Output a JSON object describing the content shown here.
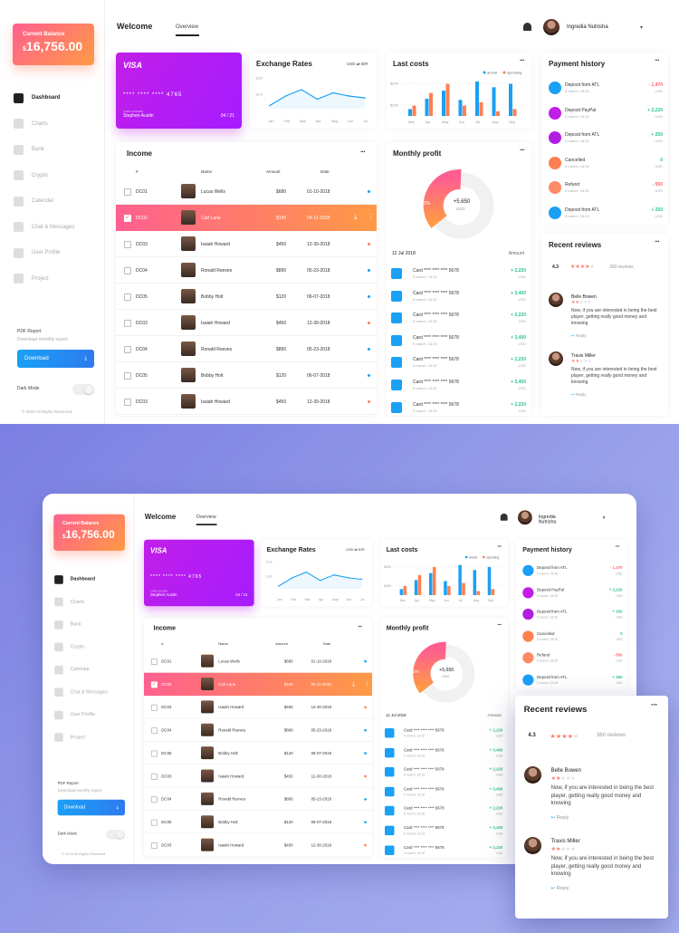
{
  "balance": {
    "label": "Current Balance",
    "currency": "$",
    "amount": "16,756.00"
  },
  "nav": [
    {
      "label": "Dashboard",
      "active": true,
      "icon": "dashboard-icon"
    },
    {
      "label": "Charts",
      "icon": "chart-icon"
    },
    {
      "label": "Bank",
      "icon": "bank-icon"
    },
    {
      "label": "Crypto",
      "icon": "crypto-icon"
    },
    {
      "label": "Calendar",
      "icon": "calendar-icon"
    },
    {
      "label": "Chat & Messages",
      "icon": "chat-icon"
    },
    {
      "label": "User Profile",
      "icon": "user-icon"
    },
    {
      "label": "Project",
      "icon": "project-icon"
    }
  ],
  "pdf": {
    "title": "PDF Report",
    "subtitle": "Download monthly report",
    "button": "Download"
  },
  "dark_mode": "Dark Mode",
  "copyright": "© 2018 All Rights Reserved",
  "header": {
    "title": "Welcome",
    "tab": "Overview",
    "user": "Ingredia Nutrisha"
  },
  "visa": {
    "brand": "VISA",
    "number": "**** **** **** 4765",
    "holder_label": "CARD HOLDER",
    "holder": "Stephen Austin",
    "expiry": "04 / 21"
  },
  "exchange": {
    "title": "Exchange Rates",
    "pair_from": "USD",
    "pair_to": "IDR",
    "y_ticks": [
      "13.6",
      "13.4"
    ],
    "months": [
      "Jan",
      "Feb",
      "Mar",
      "Apr",
      "May",
      "Jun",
      "Jul"
    ]
  },
  "last_costs": {
    "title": "Last costs",
    "legend": [
      "arrival",
      "spending"
    ],
    "y_ticks": [
      "$200",
      "$100"
    ],
    "months": [
      "Mar",
      "Apr",
      "May",
      "Jun",
      "Jul",
      "Aug",
      "Sep"
    ]
  },
  "income": {
    "title": "Income",
    "headers": [
      "#",
      "Name",
      "Amount",
      "Date"
    ],
    "rows": [
      {
        "id": "DC01",
        "name": "Lucas Wells",
        "amount": "$680",
        "date": "01-10-2018",
        "dot": "#1aa0f5"
      },
      {
        "id": "DC02",
        "name": "Carl Lane",
        "amount": "$190",
        "date": "04-11-2018",
        "selected": true
      },
      {
        "id": "DC03",
        "name": "Isaiah Howard",
        "amount": "$450",
        "date": "12-30-2018",
        "dot": "#ff7f50"
      },
      {
        "id": "DC04",
        "name": "Ronald Reeves",
        "amount": "$890",
        "date": "05-23-2018",
        "dot": "#1aa0f5"
      },
      {
        "id": "DC05",
        "name": "Bobby Holt",
        "amount": "$120",
        "date": "06-07-2018",
        "dot": "#1aa0f5"
      },
      {
        "id": "DC03",
        "name": "Isaiah Howard",
        "amount": "$450",
        "date": "12-30-2018",
        "dot": "#ff7f50"
      },
      {
        "id": "DC04",
        "name": "Ronald Reeves",
        "amount": "$890",
        "date": "05-23-2018",
        "dot": "#1aa0f5"
      },
      {
        "id": "DC05",
        "name": "Bobby Holt",
        "amount": "$120",
        "date": "06-07-2018",
        "dot": "#1aa0f5"
      },
      {
        "id": "DC03",
        "name": "Isaiah Howard",
        "amount": "$450",
        "date": "12-30-2018",
        "dot": "#ff7f50"
      }
    ]
  },
  "monthly": {
    "title": "Monthly profit",
    "value": "+5,650",
    "unit": "USD",
    "pct": "12%",
    "date": "12 Jul 2018",
    "amount_label": "Amount",
    "rows": [
      {
        "title": "Card **** **** **** 5678",
        "sub": "5 march, 18:32",
        "value": "+ 2,220"
      },
      {
        "title": "Card **** **** **** 5678",
        "sub": "5 march, 18:32",
        "value": "+ 3,400"
      },
      {
        "title": "Card **** **** **** 5678",
        "sub": "5 march, 18:32",
        "value": "+ 2,220"
      },
      {
        "title": "Card **** **** **** 5678",
        "sub": "5 march, 18:32",
        "value": "+ 3,400"
      },
      {
        "title": "Card **** **** **** 5678",
        "sub": "5 march, 18:32",
        "value": "+ 2,220"
      },
      {
        "title": "Card **** **** **** 5678",
        "sub": "5 march, 18:32",
        "value": "+ 3,400"
      },
      {
        "title": "Card **** **** **** 5678",
        "sub": "5 march, 18:32",
        "value": "+ 2,220"
      }
    ]
  },
  "payment": {
    "title": "Payment history",
    "rows": [
      {
        "title": "Deposit from ATL",
        "sub": "5 march, 18:32",
        "value": "- 1,470",
        "color": "#1aa0f5",
        "neg": true
      },
      {
        "title": "Deposit PayPal",
        "sub": "5 march, 18:32",
        "value": "+ 2,220",
        "color": "#c11ee8"
      },
      {
        "title": "Deposit from ATL",
        "sub": "5 march, 18:32",
        "value": "+ 250",
        "color": "#b21ee0"
      },
      {
        "title": "Cancelled",
        "sub": "5 march, 18:32",
        "value": "0",
        "color": "#ff7f50"
      },
      {
        "title": "Refund",
        "sub": "5 march, 18:32",
        "value": "- 550",
        "color": "#ff8a65",
        "neg": true
      },
      {
        "title": "Deposit from ATL",
        "sub": "5 march, 18:32",
        "value": "+ 250",
        "color": "#1aa0f5"
      }
    ]
  },
  "reviews": {
    "title": "Recent reviews",
    "rating": "4.3",
    "count": "360 reviews",
    "items": [
      {
        "name": "Belle Bowen",
        "text": "Now, if you are interested in being the best player, getting really good money and knowing",
        "reply": "Reply"
      },
      {
        "name": "Travis Miller",
        "text": "Now, if you are interested in being the best player, getting really good money and knowing",
        "reply": "Reply"
      }
    ]
  },
  "chart_data": [
    {
      "type": "line",
      "title": "Exchange Rates",
      "x": [
        "Jan",
        "Feb",
        "Mar",
        "Apr",
        "May",
        "Jun",
        "Jul"
      ],
      "values": [
        13.3,
        13.45,
        13.55,
        13.4,
        13.5,
        13.45,
        13.42
      ]
    },
    {
      "type": "bar",
      "title": "Last costs",
      "categories": [
        "Mar",
        "Apr",
        "May",
        "Jun",
        "Jul",
        "Aug",
        "Sep"
      ],
      "series": [
        {
          "name": "arrival",
          "values": [
            60,
            150,
            220,
            140,
            300,
            250,
            280
          ]
        },
        {
          "name": "spending",
          "values": [
            90,
            200,
            280,
            90,
            120,
            40,
            60
          ]
        }
      ]
    }
  ]
}
